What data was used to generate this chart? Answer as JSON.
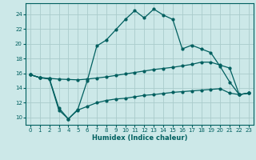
{
  "title": "",
  "xlabel": "Humidex (Indice chaleur)",
  "background_color": "#cce8e8",
  "grid_color": "#aacccc",
  "line_color": "#005f5f",
  "xlim": [
    -0.5,
    23.5
  ],
  "ylim": [
    9,
    25.5
  ],
  "xticks": [
    0,
    1,
    2,
    3,
    4,
    5,
    6,
    7,
    8,
    9,
    10,
    11,
    12,
    13,
    14,
    15,
    16,
    17,
    18,
    19,
    20,
    21,
    22,
    23
  ],
  "yticks": [
    10,
    12,
    14,
    16,
    18,
    20,
    22,
    24
  ],
  "line1_x": [
    0,
    1,
    2,
    3,
    4,
    5,
    6,
    7,
    8,
    9,
    10,
    11,
    12,
    13,
    14,
    15,
    16,
    17,
    18,
    19,
    20,
    21,
    22,
    23
  ],
  "line1_y": [
    15.8,
    15.4,
    15.3,
    15.2,
    15.15,
    15.1,
    15.2,
    15.35,
    15.5,
    15.7,
    15.9,
    16.1,
    16.3,
    16.5,
    16.65,
    16.8,
    17.0,
    17.2,
    17.5,
    17.5,
    17.1,
    16.7,
    13.1,
    13.3
  ],
  "line2_x": [
    0,
    1,
    2,
    3,
    4,
    5,
    6,
    7,
    8,
    9,
    10,
    11,
    12,
    13,
    14,
    15,
    16,
    17,
    18,
    19,
    20,
    21,
    22,
    23
  ],
  "line2_y": [
    15.8,
    15.4,
    15.3,
    11.3,
    9.8,
    11.1,
    15.0,
    19.7,
    20.5,
    21.9,
    23.3,
    24.5,
    23.5,
    24.7,
    23.9,
    23.3,
    19.3,
    19.8,
    19.3,
    18.8,
    16.9,
    14.8,
    13.1,
    13.3
  ],
  "line3_x": [
    0,
    1,
    2,
    3,
    4,
    5,
    6,
    7,
    8,
    9,
    10,
    11,
    12,
    13,
    14,
    15,
    16,
    17,
    18,
    19,
    20,
    21,
    22,
    23
  ],
  "line3_y": [
    15.8,
    15.4,
    15.2,
    11.0,
    9.8,
    11.0,
    11.5,
    12.0,
    12.3,
    12.5,
    12.6,
    12.8,
    13.0,
    13.1,
    13.25,
    13.4,
    13.5,
    13.6,
    13.7,
    13.8,
    13.9,
    13.3,
    13.1,
    13.3
  ]
}
